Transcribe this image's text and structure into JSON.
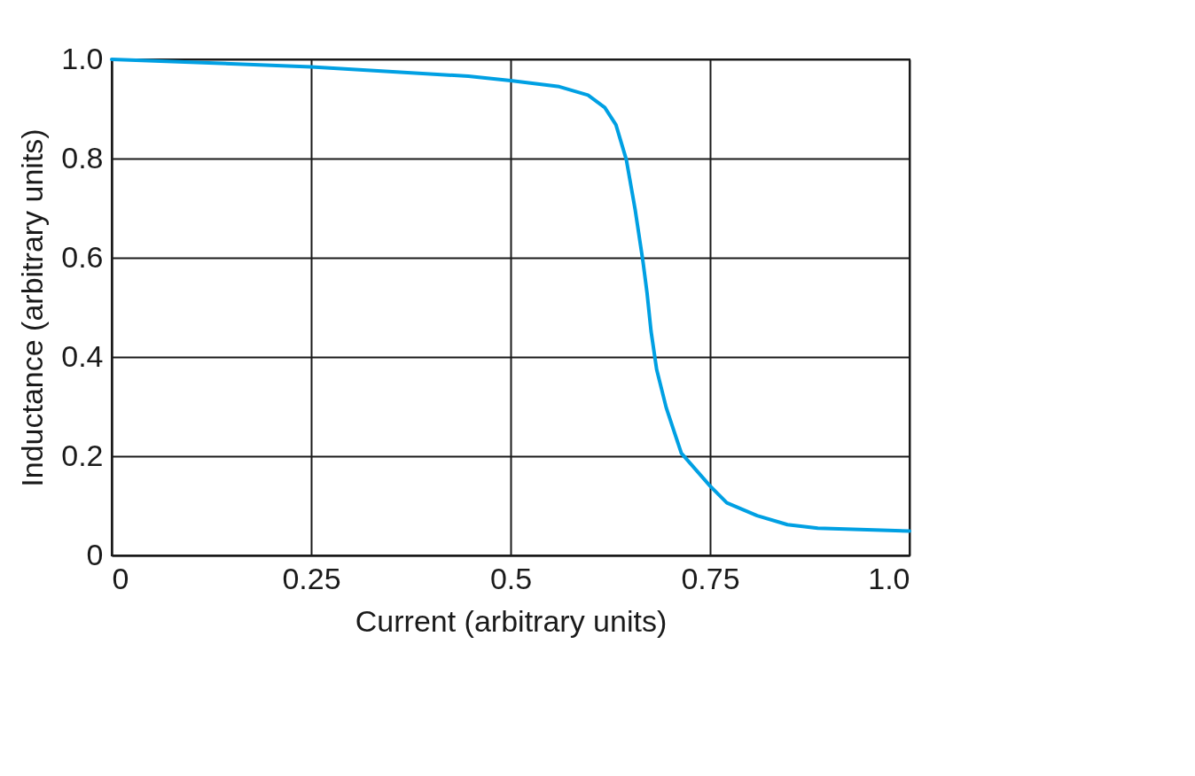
{
  "chart_data": {
    "type": "line",
    "xlabel": "Current (arbitrary units)",
    "ylabel": "Inductance (arbitrary units)",
    "x": [
      0,
      0.25,
      0.447,
      0.5,
      0.561,
      0.597,
      0.618,
      0.632,
      0.645,
      0.656,
      0.666,
      0.671,
      0.676,
      0.683,
      0.695,
      0.714,
      0.75,
      0.771,
      0.809,
      0.847,
      0.885,
      1.0
    ],
    "series": [
      {
        "color": "#00a0e3",
        "values": [
          1.0,
          0.985,
          0.966,
          0.957,
          0.945,
          0.928,
          0.903,
          0.868,
          0.798,
          0.698,
          0.591,
          0.529,
          0.452,
          0.375,
          0.298,
          0.206,
          0.14,
          0.106,
          0.08,
          0.062,
          0.055,
          0.049
        ]
      }
    ],
    "xlim": [
      0,
      1.0
    ],
    "ylim": [
      0,
      1.0
    ],
    "xticks": [
      0,
      0.25,
      0.5,
      0.75,
      {
        "value": 1.0,
        "label": "1.0"
      }
    ],
    "yticks": [
      0,
      0.2,
      0.4,
      0.6,
      0.8,
      {
        "value": 1.0,
        "label": "1.0"
      }
    ],
    "grid": true,
    "marker": "none",
    "line_style": "solid"
  }
}
